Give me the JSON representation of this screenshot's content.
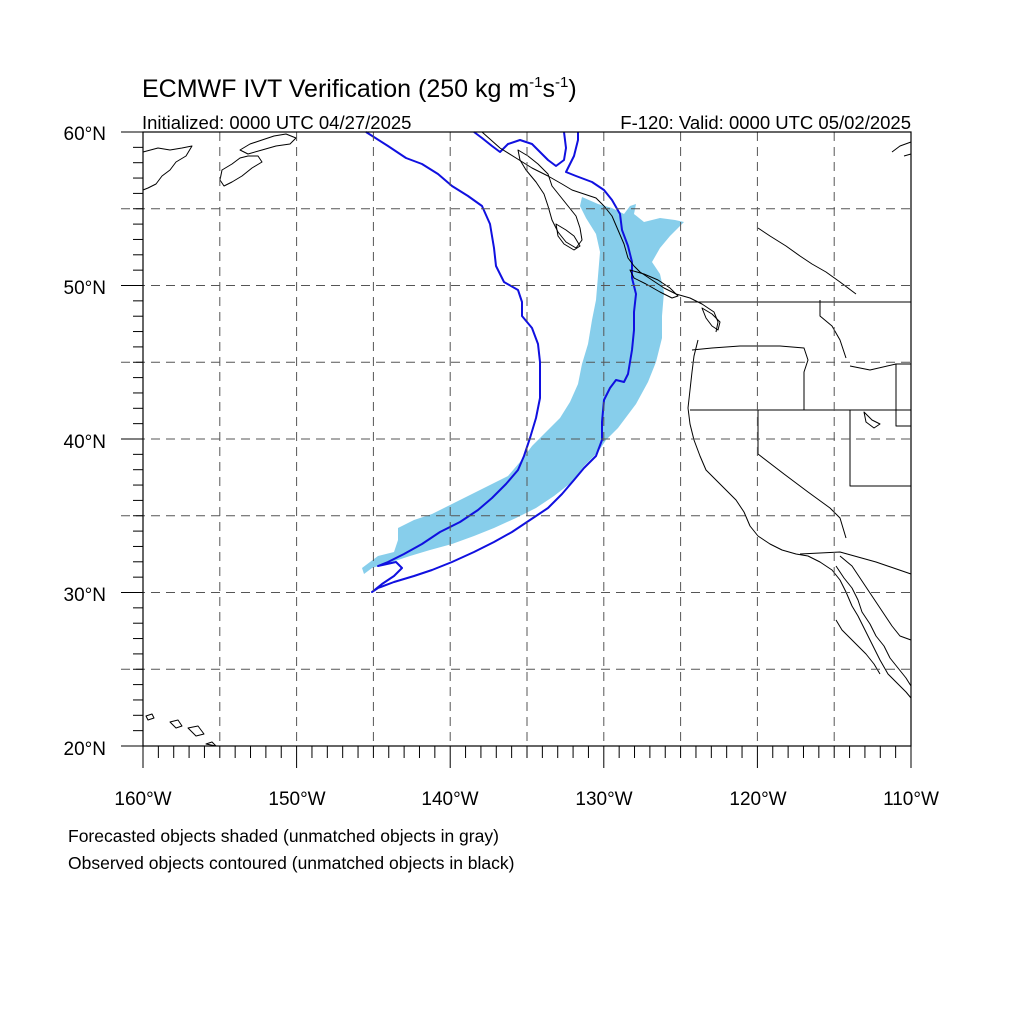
{
  "title": {
    "main": "ECMWF IVT Verification (250 kg m",
    "sup1": "-1",
    "mid": "s",
    "sup2": "-1",
    "close": ")"
  },
  "initialized": "Initialized: 0000 UTC 04/27/2025",
  "valid": "F-120: Valid: 0000 UTC 05/02/2025",
  "lat_labels": [
    "60°N",
    "50°N",
    "40°N",
    "30°N",
    "20°N"
  ],
  "lon_labels": [
    "160°W",
    "150°W",
    "140°W",
    "130°W",
    "120°W",
    "110°W"
  ],
  "map": {
    "lon_range": [
      -160,
      -110
    ],
    "lat_range": [
      20,
      60
    ],
    "grid_lons": [
      -155,
      -150,
      -145,
      -140,
      -135,
      -130,
      -125,
      -120,
      -115
    ],
    "grid_lats": [
      25,
      30,
      35,
      40,
      45,
      50,
      55
    ],
    "forecast_object_color": "#87ceeb",
    "observed_contour_color": "#1010e0",
    "coastline_color": "#000000"
  },
  "notes": [
    "Forecasted objects shaded (unmatched objects in gray)",
    "Observed objects contoured (unmatched objects in black)"
  ]
}
